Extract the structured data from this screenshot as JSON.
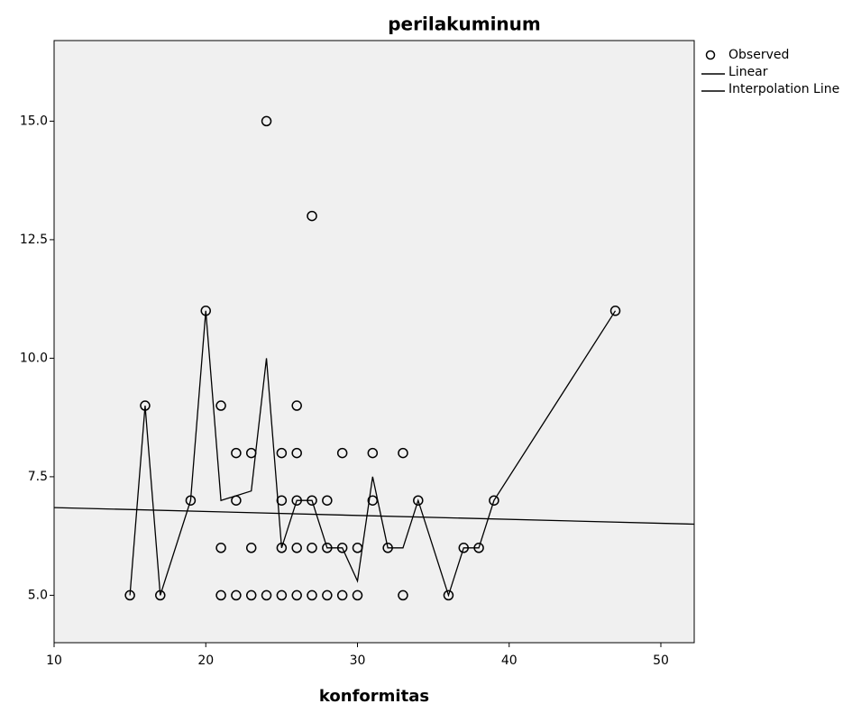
{
  "chart_data": {
    "type": "scatter",
    "title": "perilakuminum",
    "x_label": "konformitas",
    "xlim": [
      10,
      52.2
    ],
    "ylim": [
      4,
      16.7
    ],
    "xticks": [
      10,
      20,
      30,
      40,
      50
    ],
    "yticks": [
      {
        "value": 5,
        "label": "5.0"
      },
      {
        "value": 7.5,
        "label": "7.5"
      },
      {
        "value": 10,
        "label": "10.0"
      },
      {
        "value": 12.5,
        "label": "12.5"
      },
      {
        "value": 15,
        "label": "15.0"
      }
    ],
    "background": "#f0f0f0",
    "series": [
      {
        "name": "Observed",
        "type": "scatter",
        "color": "#000000",
        "x": [
          15,
          16,
          17,
          19,
          20,
          21,
          21,
          21,
          22,
          22,
          22,
          23,
          23,
          23,
          24,
          24,
          25,
          25,
          25,
          25,
          26,
          26,
          26,
          26,
          26,
          27,
          27,
          27,
          27,
          28,
          28,
          28,
          29,
          29,
          29,
          30,
          30,
          31,
          31,
          32,
          33,
          33,
          34,
          36,
          37,
          38,
          39,
          47
        ],
        "values": [
          5,
          9,
          5,
          7,
          11,
          9,
          6,
          5,
          8,
          7,
          5,
          8,
          6,
          5,
          15,
          5,
          8,
          7,
          6,
          5,
          9,
          8,
          7,
          6,
          5,
          13,
          7,
          6,
          5,
          7,
          6,
          5,
          8,
          6,
          5,
          6,
          5,
          8,
          7,
          6,
          8,
          5,
          7,
          5,
          6,
          6,
          7,
          11
        ]
      },
      {
        "name": "Linear",
        "type": "line",
        "color": "#000000",
        "x": [
          10,
          52.2
        ],
        "values": [
          6.85,
          6.5
        ]
      },
      {
        "name": "Interpolation Line",
        "type": "line",
        "color": "#000000",
        "x": [
          15,
          16,
          17,
          19,
          20,
          21,
          22,
          23,
          24,
          25,
          26,
          27,
          28,
          29,
          30,
          31,
          32,
          33,
          34,
          36,
          37,
          38,
          39,
          47
        ],
        "values": [
          5,
          9,
          5,
          7,
          11,
          7,
          7.1,
          7.2,
          10,
          6,
          7,
          7,
          6,
          6,
          5.3,
          7.5,
          6,
          6,
          7,
          5,
          6,
          6,
          7,
          11
        ]
      }
    ]
  }
}
